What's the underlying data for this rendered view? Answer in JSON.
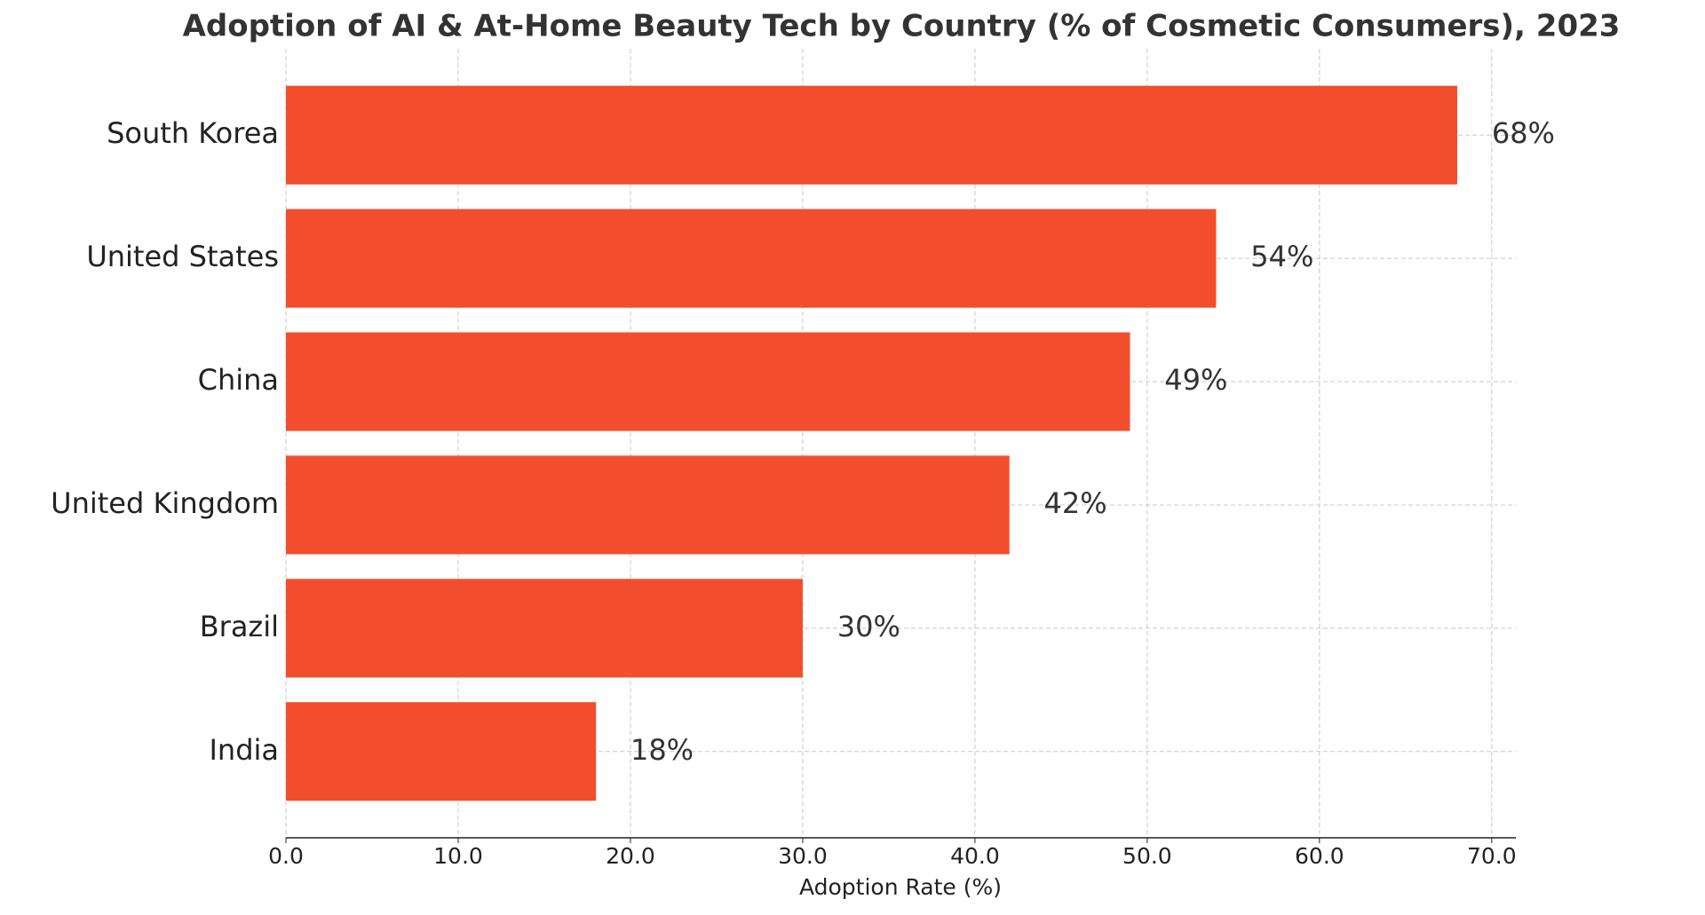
{
  "chart_data": {
    "type": "barh",
    "title": "Adoption of AI & At-Home Beauty Tech by Country (% of Cosmetic Consumers), 2023",
    "x_label": "Adoption Rate (%)",
    "categories": [
      "South Korea",
      "United States",
      "China",
      "United Kingdom",
      "Brazil",
      "India"
    ],
    "values": [
      68,
      54,
      49,
      42,
      30,
      18
    ],
    "value_labels": [
      "68%",
      "54%",
      "49%",
      "42%",
      "30%",
      "18%"
    ],
    "color": "#f24e2e",
    "xlim": [
      0,
      71.4
    ],
    "xticks": [
      {
        "value": 0,
        "label": "0.0"
      },
      {
        "value": 10,
        "label": "10.0"
      },
      {
        "value": 20,
        "label": "20.0"
      },
      {
        "value": 30,
        "label": "30.0"
      },
      {
        "value": 40,
        "label": "40.0"
      },
      {
        "value": 50,
        "label": "50.0"
      },
      {
        "value": 60,
        "label": "60.0"
      },
      {
        "value": 70,
        "label": "70.0"
      }
    ],
    "grid": true
  }
}
